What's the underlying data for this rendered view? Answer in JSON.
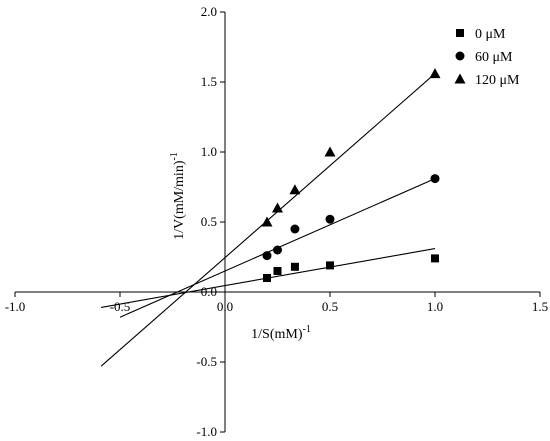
{
  "chart_data": {
    "type": "scatter",
    "title": "",
    "xlabel": "1/S(mM)",
    "xlabel_sup": "-1",
    "ylabel": "1/V(mM/min)",
    "ylabel_sup": "-1",
    "xlim": [
      -1.0,
      1.5
    ],
    "ylim": [
      -1.0,
      2.0
    ],
    "xticks": [
      -1.0,
      -0.5,
      0.0,
      0.5,
      1.0,
      1.5
    ],
    "xtick_labels": [
      "-1.0",
      "-0.5",
      "0.0",
      "0.5",
      "1.0",
      "1.5"
    ],
    "yticks": [
      -1.0,
      -0.5,
      0.0,
      0.5,
      1.0,
      1.5,
      2.0
    ],
    "ytick_labels": [
      "-1.0",
      "-0.5",
      "0.0",
      "0.5",
      "1.0",
      "1.5",
      "2.0"
    ],
    "grid": false,
    "legend_position": "top-right",
    "series": [
      {
        "name": "0 μM",
        "marker": "square",
        "x": [
          0.2,
          0.25,
          0.333,
          0.5,
          1.0
        ],
        "y": [
          0.1,
          0.15,
          0.18,
          0.19,
          0.24
        ],
        "fit": {
          "x": [
            -0.59,
            1.0
          ],
          "y": [
            -0.11,
            0.31
          ]
        }
      },
      {
        "name": "60 μM",
        "marker": "circle",
        "x": [
          0.2,
          0.25,
          0.333,
          0.5,
          1.0
        ],
        "y": [
          0.26,
          0.3,
          0.45,
          0.52,
          0.81
        ],
        "fit": {
          "x": [
            -0.5,
            1.0
          ],
          "y": [
            -0.18,
            0.81
          ]
        }
      },
      {
        "name": "120 μM",
        "marker": "triangle",
        "x": [
          0.2,
          0.25,
          0.333,
          0.5,
          1.0
        ],
        "y": [
          0.5,
          0.6,
          0.73,
          1.0,
          1.56
        ],
        "fit": {
          "x": [
            -0.59,
            1.0
          ],
          "y": [
            -0.53,
            1.56
          ]
        }
      }
    ]
  }
}
